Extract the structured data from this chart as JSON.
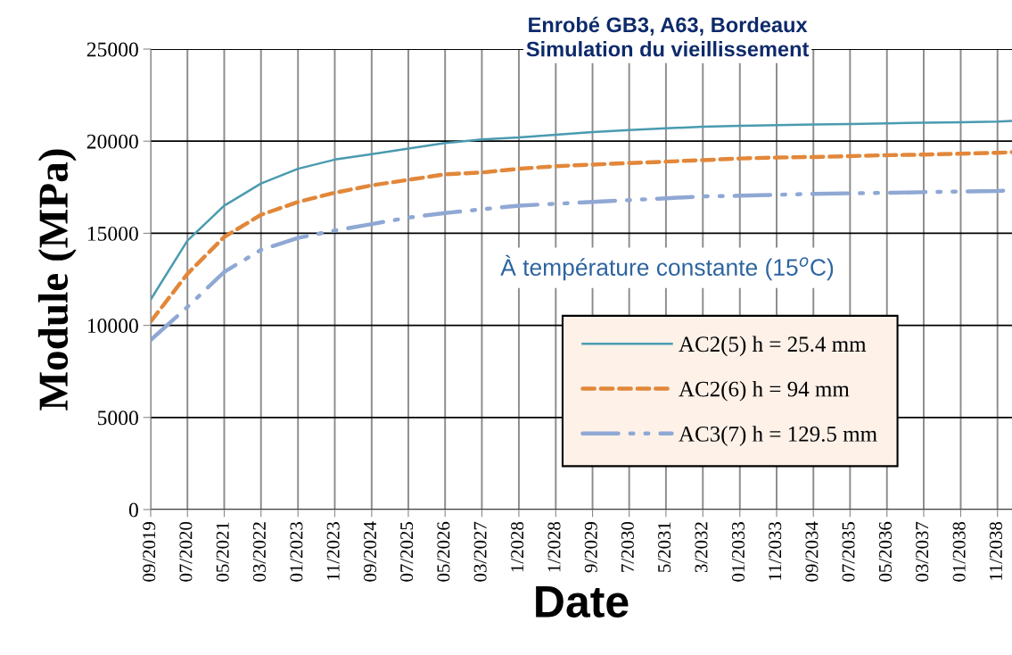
{
  "chart_data": {
    "type": "line",
    "title": "Enrobé GB3, A63, Bordeaux",
    "subtitle": "Simulation du vieillissement",
    "xlabel": "Date",
    "ylabel": "Module (MPa)",
    "x": [
      "2019-09",
      "2020-07",
      "2021-05",
      "2022-03",
      "2023-01",
      "2023-11",
      "2024-09",
      "2025-07",
      "2026-05",
      "2027-03",
      "2028-01",
      "2028-11",
      "2029-09",
      "2030-07",
      "2031-05",
      "2032-03",
      "2033-01",
      "2033-11",
      "2034-09",
      "2035-07",
      "2036-05",
      "2037-03",
      "2038-01",
      "2038-11",
      "2039-03"
    ],
    "series": [
      {
        "name": "AC2(5) h = 25.4 mm",
        "color": "#4a9bb0",
        "line_style": "solid",
        "values": [
          11400,
          14600,
          16500,
          17700,
          18500,
          19000,
          19300,
          19600,
          19900,
          20100,
          20200,
          20350,
          20500,
          20600,
          20700,
          20780,
          20830,
          20870,
          20900,
          20930,
          20970,
          21000,
          21030,
          21060,
          21100
        ]
      },
      {
        "name": "AC2(6) h = 94 mm",
        "color": "#e2873a",
        "line_style": "dashed",
        "values": [
          10200,
          12800,
          14800,
          16000,
          16700,
          17200,
          17600,
          17900,
          18200,
          18300,
          18500,
          18640,
          18730,
          18810,
          18890,
          18970,
          19060,
          19110,
          19140,
          19190,
          19240,
          19270,
          19320,
          19370,
          19400
        ]
      },
      {
        "name": "AC3(7) h = 129.5 mm",
        "color": "#8fa8d4",
        "line_style": "dashdot",
        "values": [
          9200,
          11000,
          12900,
          14100,
          14750,
          15150,
          15500,
          15850,
          16100,
          16300,
          16500,
          16600,
          16700,
          16800,
          16900,
          17000,
          17040,
          17090,
          17140,
          17170,
          17200,
          17230,
          17270,
          17300,
          17330
        ]
      }
    ],
    "xlim": [
      "2019-09",
      "2039-03"
    ],
    "xticks": [
      {
        "value": "2019-09",
        "label": "09/2019"
      },
      {
        "value": "2020-07",
        "label": "07/2020"
      },
      {
        "value": "2021-05",
        "label": "05/2021"
      },
      {
        "value": "2022-03",
        "label": "03/2022"
      },
      {
        "value": "2023-01",
        "label": "01/2023"
      },
      {
        "value": "2023-11",
        "label": "11/2023"
      },
      {
        "value": "2024-09",
        "label": "09/2024"
      },
      {
        "value": "2025-07",
        "label": "07/2025"
      },
      {
        "value": "2026-05",
        "label": "05/2026"
      },
      {
        "value": "2027-03",
        "label": "03/2027"
      },
      {
        "value": "2028-01",
        "label": "1/2028"
      },
      {
        "value": "2028-11",
        "label": "1/2028"
      },
      {
        "value": "2029-09",
        "label": "9/2029"
      },
      {
        "value": "2030-07",
        "label": "7/2030"
      },
      {
        "value": "2031-05",
        "label": "5/2031"
      },
      {
        "value": "2032-03",
        "label": "3/2032"
      },
      {
        "value": "2033-01",
        "label": "01/2033"
      },
      {
        "value": "2033-11",
        "label": "11/2033"
      },
      {
        "value": "2034-09",
        "label": "09/2034"
      },
      {
        "value": "2035-07",
        "label": "07/2035"
      },
      {
        "value": "2036-05",
        "label": "05/2036"
      },
      {
        "value": "2037-03",
        "label": "03/2037"
      },
      {
        "value": "2038-01",
        "label": "01/2038"
      },
      {
        "value": "2038-11",
        "label": "11/2038"
      }
    ],
    "ylim": [
      0,
      25000
    ],
    "yticks": [
      0,
      5000,
      10000,
      15000,
      20000,
      25000
    ],
    "grid": true,
    "legend": "bottom right",
    "marker": "none",
    "annotations": [
      "À température constante (15$^{o}$C)"
    ]
  }
}
